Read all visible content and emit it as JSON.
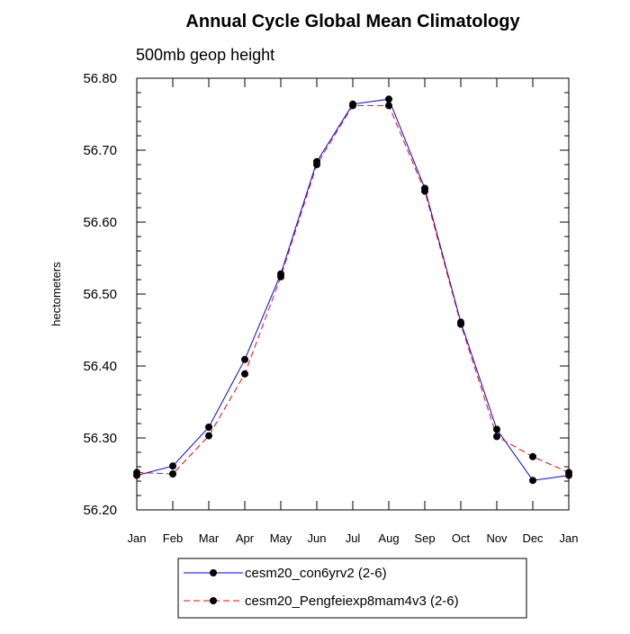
{
  "chart_data": {
    "type": "line",
    "title": "Annual Cycle Global Mean Climatology",
    "subtitle": "500mb geop height",
    "xlabel": "",
    "ylabel": "hectometers",
    "categories": [
      "Jan",
      "Feb",
      "Mar",
      "Apr",
      "May",
      "Jun",
      "Jul",
      "Aug",
      "Sep",
      "Oct",
      "Nov",
      "Dec",
      "Jan"
    ],
    "ylim": [
      56.2,
      56.8
    ],
    "yticks": [
      "56.20",
      "56.30",
      "56.40",
      "56.50",
      "56.60",
      "56.70",
      "56.80"
    ],
    "grid": false,
    "legend_position": "bottom",
    "series": [
      {
        "name": "cesm20_con6yrv2 (2-6)",
        "color": "#0000ff",
        "dash": "solid",
        "values": [
          56.248,
          56.261,
          56.315,
          56.409,
          56.528,
          56.684,
          56.764,
          56.771,
          56.647,
          56.461,
          56.312,
          56.241,
          56.248
        ]
      },
      {
        "name": "cesm20_Pengfeiexp8mam4v3 (2-6)",
        "color": "#ff0000",
        "dash": "dashed",
        "values": [
          56.252,
          56.25,
          56.303,
          56.389,
          56.524,
          56.68,
          56.762,
          56.762,
          56.643,
          56.458,
          56.302,
          56.274,
          56.252
        ]
      }
    ]
  }
}
